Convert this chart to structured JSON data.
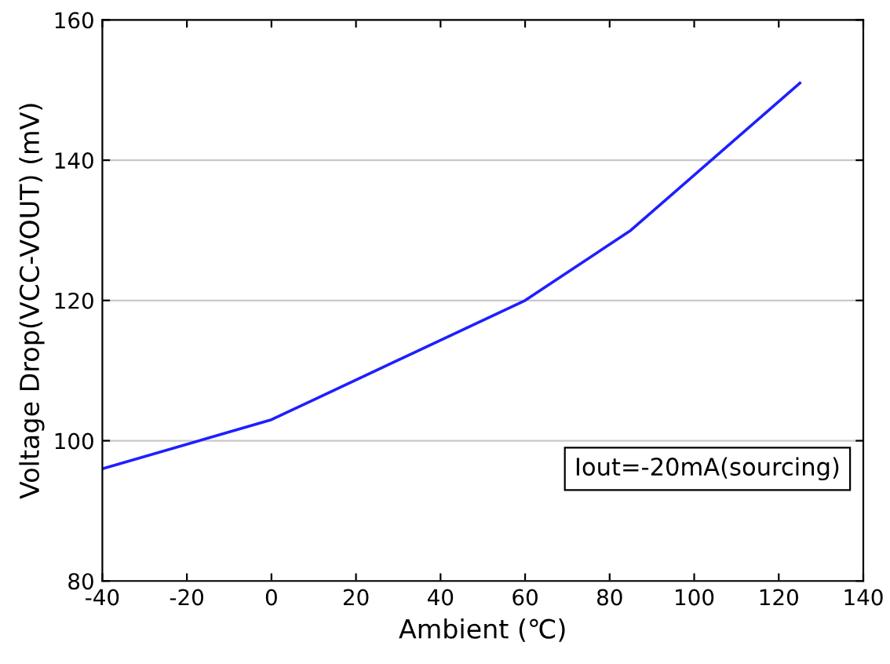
{
  "chart_data": {
    "type": "line",
    "xlabel": "Ambient (℃)",
    "ylabel": "Voltage Drop(VCC-VOUT) (mV)",
    "x": [
      -40,
      0,
      60,
      85,
      125
    ],
    "series": [
      {
        "color": "#1f1fff",
        "values": [
          96,
          103,
          120,
          130,
          151
        ]
      }
    ],
    "xlim": [
      -40,
      140
    ],
    "xticks": [
      -40,
      -20,
      0,
      20,
      40,
      60,
      80,
      100,
      120,
      140
    ],
    "ylim": [
      80,
      160
    ],
    "yticks": [
      80,
      100,
      120,
      140,
      160
    ],
    "grid": "y",
    "annotations": [
      "Iout=-20mA(sourcing)"
    ]
  }
}
